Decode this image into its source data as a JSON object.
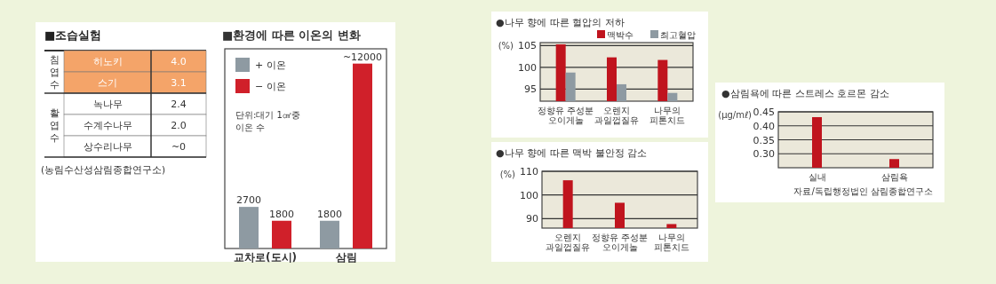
{
  "chart_data": [
    {
      "type": "other",
      "title": "■조습실험",
      "categories": [
        "히노키",
        "스기",
        "녹나무",
        "수계수나무",
        "상수리나무"
      ],
      "value_labels": [
        "4.0",
        "3.1",
        "2.4",
        "2.0",
        "~0"
      ],
      "colors": [
        "#f4a469",
        "#f4a469",
        "#ffffff",
        "#ffffff",
        "#ffffff"
      ],
      "annotations": [
        "침엽수",
        "활엽수",
        "(농림수산성삼림종합연구소)"
      ]
    },
    {
      "type": "bar",
      "title": "■환경에 따른 이온의 변화",
      "categories": [
        "교차로(도시)",
        "삼림"
      ],
      "legend": "top left",
      "series": [
        {
          "name": "+ 이온",
          "color": "#8e9aa2",
          "values": [
            2700,
            1800
          ],
          "value_labels": [
            "2700",
            "1800"
          ]
        },
        {
          "name": "− 이온",
          "color": "#d0202a",
          "values": [
            1800,
            12000
          ],
          "value_labels": [
            "1800",
            "~12000"
          ]
        }
      ],
      "annotations": [
        "단위:대기 1㎤중 이온 수"
      ]
    },
    {
      "type": "bar",
      "title": "●나무 향에 따른 혈압의 저하",
      "ylabel": "(%)",
      "categories": [
        "정향유 주성분\n오이게놀",
        "오렌지\n과일껍질유",
        "나무의\n피톤치드"
      ],
      "legend": "top right",
      "grid": "y",
      "ylim": [
        92.2,
        105.7
      ],
      "yticks": [
        95,
        100,
        105
      ],
      "series": [
        {
          "name": "맥박수",
          "color": "#c0141e",
          "values": [
            105.3,
            102.3,
            101.7
          ]
        },
        {
          "name": "최고혈압",
          "color": "#8e9aa2",
          "values": [
            98.8,
            96.1,
            94.1
          ]
        }
      ]
    },
    {
      "type": "bar",
      "title": "●나무 향에 따른 맥박 불안정 감소",
      "ylabel": "(%)",
      "categories": [
        "오렌지\n과일껍질유",
        "정향유 주성분\n오이게놀",
        "나무의\n피톤치드"
      ],
      "grid": "y",
      "ylim": [
        86,
        110
      ],
      "yticks": [
        90,
        100,
        110
      ],
      "color": "#c0141e",
      "values": [
        106.2,
        96.7,
        87.7
      ]
    },
    {
      "type": "bar",
      "title": "●삼림욕에 따른 스트레스 호르몬 감소",
      "ylabel": "(μg/mℓ)",
      "categories": [
        "실내",
        "삼림욕"
      ],
      "grid": "y",
      "ylim": [
        0.25,
        0.45
      ],
      "yticks": [
        {
          "value": 0.3,
          "label": "0.30"
        },
        {
          "value": 0.35,
          "label": "0.35"
        },
        {
          "value": 0.4,
          "label": "0.40"
        },
        0.45
      ],
      "color": "#c0141e",
      "values": [
        0.431,
        0.281
      ],
      "annotations": [
        "자료/독립행정법인 삼림종합연구소"
      ]
    }
  ]
}
